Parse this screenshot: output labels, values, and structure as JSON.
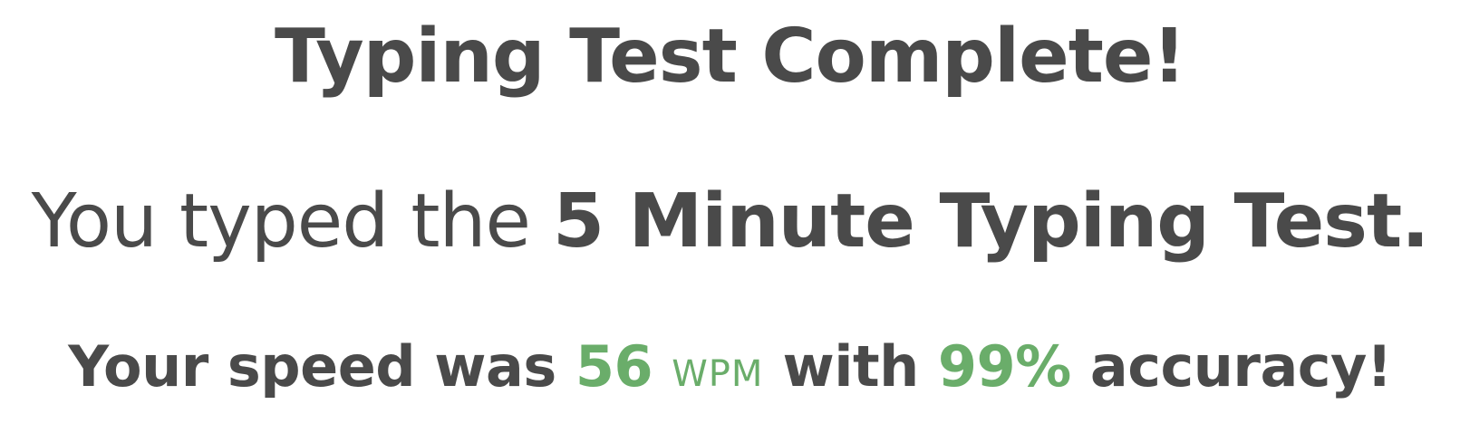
{
  "title": "Typing Test Complete!",
  "test_line": {
    "prefix": "You typed the",
    "test_name": "5 Minute Typing Test."
  },
  "speed_line": {
    "prefix": "Your speed was",
    "wpm_value": "56",
    "wpm_unit": "WPM",
    "middle": "with",
    "accuracy_value": "99%",
    "suffix": "accuracy!"
  },
  "colors": {
    "text": "#4a4a4a",
    "highlight": "#6aad6a"
  }
}
